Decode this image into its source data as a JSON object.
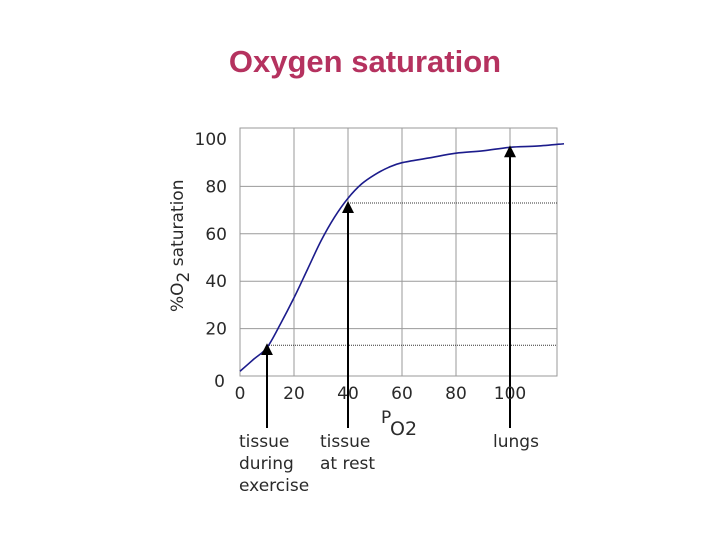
{
  "title": "Oxygen saturation",
  "chart_data": {
    "type": "line",
    "title": "Oxygen saturation",
    "xlabel_main": "P",
    "xlabel_sub": "O2",
    "ylabel_prefix": "%O",
    "ylabel_sub": "2",
    "ylabel_suffix": " saturation",
    "xlim": [
      0,
      120
    ],
    "ylim": [
      0,
      100
    ],
    "x_ticks": [
      "0",
      "20",
      "40",
      "60",
      "80",
      "100"
    ],
    "y_ticks": [
      "0",
      "20",
      "40",
      "60",
      "80",
      "100"
    ],
    "grid": true,
    "line_color": "#1c1c8c",
    "series": [
      {
        "x": [
          0,
          5,
          10,
          15,
          20,
          25,
          30,
          35,
          40,
          45,
          50,
          55,
          60,
          70,
          80,
          90,
          100,
          110,
          120
        ],
        "values": [
          2,
          7,
          12,
          22,
          33,
          45,
          57,
          67,
          75,
          81,
          85,
          88,
          90,
          92,
          94,
          95,
          96.5,
          97,
          98
        ]
      }
    ],
    "reference_lines": [
      {
        "y": 73,
        "x_from": 40
      },
      {
        "y": 13,
        "x_from": 10
      }
    ],
    "annotations": [
      {
        "x": 10,
        "y": 13,
        "lines": [
          "tissue",
          "during",
          "exercise"
        ]
      },
      {
        "x": 40,
        "y": 73,
        "lines": [
          "tissue",
          "at rest"
        ]
      },
      {
        "x": 100,
        "y": 96.5,
        "lines": [
          "lungs"
        ]
      }
    ]
  }
}
